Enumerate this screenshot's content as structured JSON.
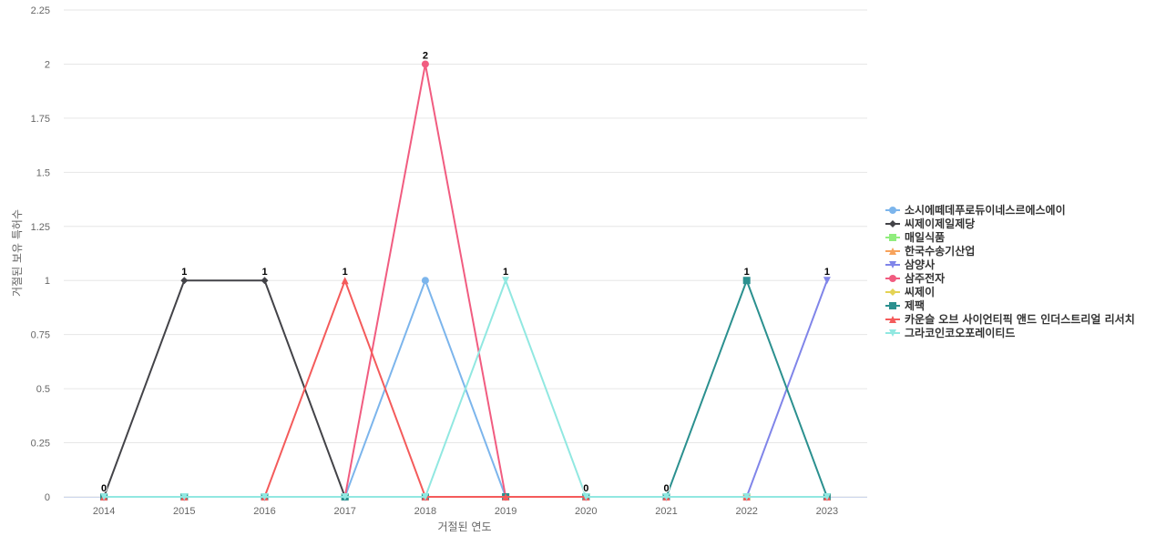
{
  "chart_data": {
    "type": "line",
    "title": "",
    "xlabel": "거절된 연도",
    "ylabel": "거절된 보유 특허수",
    "x": [
      "2014",
      "2015",
      "2016",
      "2017",
      "2018",
      "2019",
      "2020",
      "2021",
      "2022",
      "2023"
    ],
    "ylim": [
      0,
      2.25
    ],
    "yticks": [
      "0",
      "0.25",
      "0.5",
      "0.75",
      "1",
      "1.25",
      "1.5",
      "1.75",
      "2",
      "2.25"
    ],
    "grid": true,
    "legend_position": "right",
    "series": [
      {
        "name": "소시에떼데푸로듀이네스르에스에이",
        "color": "#7cb5ec",
        "marker": "circle",
        "values": [
          0,
          0,
          0,
          0,
          1,
          0,
          0,
          0,
          0,
          0
        ]
      },
      {
        "name": "씨제이제일제당",
        "color": "#434348",
        "marker": "diamond",
        "values": [
          0,
          1,
          1,
          0,
          0,
          0,
          0,
          0,
          0,
          0
        ]
      },
      {
        "name": "매일식품",
        "color": "#90ed7d",
        "marker": "square",
        "values": [
          0,
          0,
          0,
          0,
          0,
          0,
          0,
          0,
          0,
          0
        ]
      },
      {
        "name": "한국수송기산업",
        "color": "#f7a35c",
        "marker": "triangle",
        "values": [
          0,
          0,
          0,
          0,
          0,
          0,
          0,
          0,
          0,
          0
        ]
      },
      {
        "name": "삼양사",
        "color": "#8085e9",
        "marker": "triangle-down",
        "values": [
          0,
          0,
          0,
          0,
          0,
          0,
          0,
          0,
          0,
          1
        ]
      },
      {
        "name": "삼주전자",
        "color": "#f15c80",
        "marker": "circle",
        "values": [
          0,
          0,
          0,
          0,
          2,
          0,
          0,
          0,
          0,
          0
        ]
      },
      {
        "name": "씨제이",
        "color": "#e4d354",
        "marker": "diamond",
        "values": [
          0,
          0,
          0,
          0,
          0,
          0,
          0,
          0,
          0,
          0
        ]
      },
      {
        "name": "제팩",
        "color": "#2b908f",
        "marker": "square",
        "values": [
          0,
          0,
          0,
          0,
          0,
          0,
          0,
          0,
          1,
          0
        ]
      },
      {
        "name": "카운슬 오브 사이언티픽 앤드 인더스트리얼 리서치",
        "color": "#f45b5b",
        "marker": "triangle",
        "values": [
          0,
          0,
          0,
          1,
          0,
          0,
          0,
          0,
          0,
          0
        ]
      },
      {
        "name": "그라코인코오포레이티드",
        "color": "#91e8e1",
        "marker": "triangle-down",
        "values": [
          0,
          0,
          0,
          0,
          0,
          1,
          0,
          0,
          0,
          0
        ]
      }
    ]
  }
}
